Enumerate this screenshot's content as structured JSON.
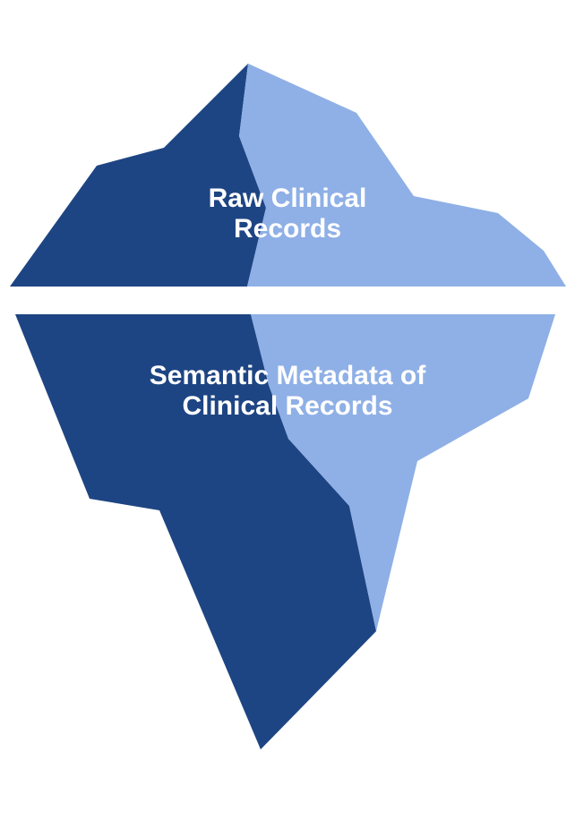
{
  "colors": {
    "dark_face": "#1e4583",
    "light_face": "#8fb0e6",
    "background": "#ffffff",
    "label_text": "#ffffff"
  },
  "above_water": {
    "label_line1": "Raw Clinical",
    "label_line2": "Records"
  },
  "below_water": {
    "label_line1": "Semantic Metadata of",
    "label_line2": "Clinical Records"
  }
}
